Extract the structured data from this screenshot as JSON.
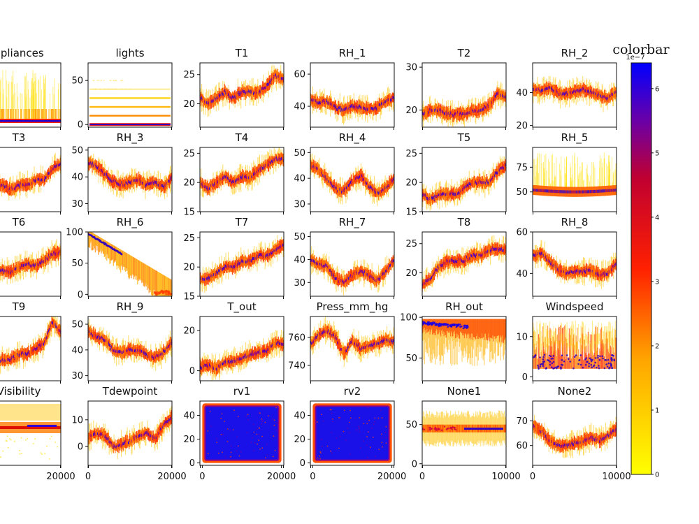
{
  "chart_data": {
    "type": "scatter",
    "description_colormap": [
      "#ffff00",
      "#ffa500",
      "#ff0000",
      "#8b00a0",
      "#0000ff"
    ],
    "colorbar": {
      "title": "colorbar",
      "exponent_label": "1e−7",
      "ticks": [
        "0",
        "1",
        "2",
        "3",
        "4",
        "5",
        "6"
      ],
      "range": [
        0,
        6.4
      ]
    },
    "panels": [
      {
        "title": "ppliances",
        "xticks": [],
        "yticks": [],
        "xlim": [
          0,
          20000
        ],
        "style": "appliances"
      },
      {
        "title": "lights",
        "xticks": [],
        "yticks": [
          {
            "v": 50,
            "t": "50"
          },
          {
            "v": 0,
            "t": "0"
          }
        ],
        "ylim": [
          -3,
          70
        ],
        "xlim": [
          0,
          20000
        ],
        "style": "lights"
      },
      {
        "title": "T1",
        "xticks": [],
        "yticks": [
          {
            "v": 25,
            "t": "25"
          },
          {
            "v": 20,
            "t": "20"
          }
        ],
        "ylim": [
          16,
          27
        ],
        "xlim": [
          0,
          20000
        ],
        "style": "series",
        "series": [
          21,
          20,
          21,
          22,
          21,
          22,
          22,
          22,
          23,
          25,
          24
        ]
      },
      {
        "title": "RH_1",
        "xticks": [],
        "yticks": [
          {
            "v": 60,
            "t": "60"
          },
          {
            "v": 40,
            "t": "40"
          }
        ],
        "ylim": [
          27,
          67
        ],
        "xlim": [
          0,
          20000
        ],
        "style": "series",
        "series": [
          44,
          42,
          43,
          39,
          38,
          40,
          39,
          38,
          39,
          43,
          45
        ]
      },
      {
        "title": "T2",
        "xticks": [],
        "yticks": [
          {
            "v": 30,
            "t": "30"
          },
          {
            "v": 20,
            "t": "20"
          }
        ],
        "ylim": [
          16,
          31
        ],
        "xlim": [
          0,
          20000
        ],
        "style": "series",
        "series": [
          19,
          20,
          20,
          19,
          19,
          19,
          20,
          20,
          21,
          24,
          23
        ]
      },
      {
        "title": "RH_2",
        "xticks": [],
        "yticks": [
          {
            "v": 40,
            "t": "40"
          },
          {
            "v": 20,
            "t": "20"
          }
        ],
        "ylim": [
          19,
          58
        ],
        "xlim": [
          0,
          20000
        ],
        "style": "series",
        "series": [
          42,
          41,
          43,
          40,
          39,
          41,
          42,
          40,
          38,
          37,
          40
        ]
      },
      {
        "title": "T3",
        "xticks": [],
        "yticks": [],
        "xlim": [
          0,
          20000
        ],
        "style": "series",
        "series": [
          21,
          20,
          21,
          22,
          21,
          22,
          22,
          23,
          23,
          25,
          26
        ],
        "ylim": [
          17,
          29
        ]
      },
      {
        "title": "RH_3",
        "xticks": [],
        "yticks": [
          {
            "v": 50,
            "t": "50"
          },
          {
            "v": 40,
            "t": "40"
          },
          {
            "v": 30,
            "t": "30"
          }
        ],
        "ylim": [
          27,
          51
        ],
        "xlim": [
          0,
          20000
        ],
        "style": "series",
        "series": [
          45,
          44,
          41,
          38,
          37,
          38,
          39,
          37,
          38,
          36,
          40
        ]
      },
      {
        "title": "T4",
        "xticks": [],
        "yticks": [
          {
            "v": 25,
            "t": "25"
          },
          {
            "v": 20,
            "t": "20"
          },
          {
            "v": 15,
            "t": "15"
          }
        ],
        "ylim": [
          15,
          26
        ],
        "xlim": [
          0,
          20000
        ],
        "style": "series",
        "series": [
          20,
          19,
          20,
          21,
          20,
          21,
          21,
          22,
          23,
          24,
          24
        ]
      },
      {
        "title": "RH_4",
        "xticks": [],
        "yticks": [
          {
            "v": 50,
            "t": "50"
          },
          {
            "v": 40,
            "t": "40"
          },
          {
            "v": 30,
            "t": "30"
          }
        ],
        "ylim": [
          27,
          52
        ],
        "xlim": [
          0,
          20000
        ],
        "style": "series",
        "series": [
          45,
          43,
          40,
          36,
          35,
          39,
          41,
          37,
          34,
          36,
          40
        ]
      },
      {
        "title": "T5",
        "xticks": [],
        "yticks": [
          {
            "v": 25,
            "t": "25"
          },
          {
            "v": 20,
            "t": "20"
          },
          {
            "v": 15,
            "t": "15"
          }
        ],
        "ylim": [
          15,
          26
        ],
        "xlim": [
          0,
          20000
        ],
        "style": "series",
        "series": [
          18,
          17,
          18,
          18,
          18,
          19,
          20,
          20,
          20,
          22,
          23
        ]
      },
      {
        "title": "RH_5",
        "xticks": [],
        "yticks": [
          {
            "v": 75,
            "t": "75"
          },
          {
            "v": 50,
            "t": "50"
          }
        ],
        "ylim": [
          30,
          95
        ],
        "xlim": [
          0,
          20000
        ],
        "style": "rh5"
      },
      {
        "title": "T6",
        "xticks": [],
        "yticks": [],
        "xlim": [
          0,
          20000
        ],
        "ylim": [
          -10,
          30
        ],
        "style": "series",
        "series": [
          0,
          2,
          4,
          6,
          5,
          8,
          10,
          9,
          12,
          16,
          18
        ]
      },
      {
        "title": "RH_6",
        "xticks": [],
        "yticks": [
          {
            "v": 100,
            "t": "100"
          },
          {
            "v": 50,
            "t": "50"
          },
          {
            "v": 0,
            "t": "0"
          }
        ],
        "ylim": [
          -3,
          100
        ],
        "xlim": [
          0,
          20000
        ],
        "style": "rh6"
      },
      {
        "title": "T7",
        "xticks": [],
        "yticks": [
          {
            "v": 25,
            "t": "25"
          },
          {
            "v": 20,
            "t": "20"
          },
          {
            "v": 15,
            "t": "15"
          }
        ],
        "ylim": [
          15,
          26
        ],
        "xlim": [
          0,
          20000
        ],
        "style": "series",
        "series": [
          18,
          18,
          19,
          20,
          20,
          21,
          21,
          22,
          22,
          23,
          24
        ]
      },
      {
        "title": "RH_7",
        "xticks": [],
        "yticks": [
          {
            "v": 50,
            "t": "50"
          },
          {
            "v": 40,
            "t": "40"
          },
          {
            "v": 30,
            "t": "30"
          }
        ],
        "ylim": [
          24,
          52
        ],
        "xlim": [
          0,
          20000
        ],
        "style": "series",
        "series": [
          40,
          38,
          37,
          32,
          30,
          33,
          35,
          33,
          31,
          35,
          40
        ]
      },
      {
        "title": "T8",
        "xticks": [],
        "yticks": [
          {
            "v": 25,
            "t": "25"
          },
          {
            "v": 20,
            "t": "20"
          }
        ],
        "ylim": [
          16,
          27
        ],
        "xlim": [
          0,
          20000
        ],
        "style": "series",
        "series": [
          18,
          19,
          21,
          22,
          22,
          22,
          23,
          23,
          24,
          24,
          24
        ]
      },
      {
        "title": "RH_8",
        "xticks": [],
        "yticks": [
          {
            "v": 60,
            "t": "60"
          },
          {
            "v": 40,
            "t": "40"
          }
        ],
        "ylim": [
          29,
          60
        ],
        "xlim": [
          0,
          20000
        ],
        "style": "series",
        "series": [
          48,
          50,
          46,
          42,
          40,
          41,
          41,
          42,
          39,
          40,
          45
        ]
      },
      {
        "title": "T9",
        "xticks": [],
        "yticks": [],
        "xlim": [
          0,
          20000
        ],
        "ylim": [
          14,
          26
        ],
        "style": "series",
        "series": [
          16,
          16,
          17,
          18,
          18,
          19,
          19,
          20,
          21,
          25,
          23
        ]
      },
      {
        "title": "RH_9",
        "xticks": [],
        "yticks": [
          {
            "v": 50,
            "t": "50"
          },
          {
            "v": 40,
            "t": "40"
          },
          {
            "v": 30,
            "t": "30"
          }
        ],
        "ylim": [
          28,
          53
        ],
        "xlim": [
          0,
          20000
        ],
        "style": "series",
        "series": [
          47,
          45,
          44,
          40,
          39,
          40,
          40,
          38,
          37,
          39,
          43
        ]
      },
      {
        "title": "T_out",
        "xticks": [],
        "yticks": [
          {
            "v": 20,
            "t": "20"
          },
          {
            "v": 0,
            "t": "0"
          }
        ],
        "ylim": [
          -5,
          27
        ],
        "xlim": [
          0,
          20000
        ],
        "style": "series",
        "series": [
          2,
          3,
          1,
          4,
          5,
          6,
          8,
          9,
          10,
          14,
          13
        ]
      },
      {
        "title": "Press_mm_hg",
        "xticks": [],
        "yticks": [
          {
            "v": 760,
            "t": "760"
          },
          {
            "v": 740,
            "t": "740"
          }
        ],
        "ylim": [
          729,
          775
        ],
        "xlim": [
          0,
          20000
        ],
        "style": "series",
        "series": [
          755,
          762,
          765,
          760,
          748,
          758,
          752,
          754,
          756,
          758,
          757
        ]
      },
      {
        "title": "RH_out",
        "xticks": [],
        "yticks": [
          {
            "v": 100,
            "t": "100"
          },
          {
            "v": 50,
            "t": "50"
          }
        ],
        "ylim": [
          22,
          101
        ],
        "xlim": [
          0,
          20000
        ],
        "style": "rhout"
      },
      {
        "title": "Windspeed",
        "xticks": [],
        "yticks": [
          {
            "v": 10,
            "t": "10"
          },
          {
            "v": 0,
            "t": "0"
          }
        ],
        "ylim": [
          -1,
          15
        ],
        "xlim": [
          0,
          20000
        ],
        "style": "windspeed"
      },
      {
        "title": "Visibility",
        "xticks": [
          {
            "v": 20000,
            "t": "20000"
          }
        ],
        "yticks": [],
        "xlim": [
          0,
          20000
        ],
        "style": "visibility"
      },
      {
        "title": "Tdewpoint",
        "xticks": [
          {
            "v": 0,
            "t": "0"
          },
          {
            "v": 20000,
            "t": "20000"
          }
        ],
        "yticks": [
          {
            "v": 10,
            "t": "10"
          },
          {
            "v": 0,
            "t": "0"
          }
        ],
        "ylim": [
          -7,
          17
        ],
        "xlim": [
          0,
          20000
        ],
        "style": "series",
        "series": [
          3,
          5,
          4,
          0,
          1,
          2,
          4,
          5,
          3,
          8,
          11
        ]
      },
      {
        "title": "rv1",
        "xticks": [
          {
            "v": 0,
            "t": "0"
          },
          {
            "v": 20000,
            "t": "20000"
          }
        ],
        "yticks": [
          {
            "v": 40,
            "t": "40"
          },
          {
            "v": 20,
            "t": "20"
          },
          {
            "v": 0,
            "t": "0"
          }
        ],
        "ylim": [
          -2,
          52
        ],
        "xlim": [
          -600,
          20600
        ],
        "style": "rv"
      },
      {
        "title": "rv2",
        "xticks": [
          {
            "v": 0,
            "t": "0"
          },
          {
            "v": 20000,
            "t": "20000"
          }
        ],
        "yticks": [
          {
            "v": 40,
            "t": "40"
          },
          {
            "v": 20,
            "t": "20"
          },
          {
            "v": 0,
            "t": "0"
          }
        ],
        "ylim": [
          -2,
          52
        ],
        "xlim": [
          -600,
          20600
        ],
        "style": "rv"
      },
      {
        "title": "None1",
        "xticks": [
          {
            "v": 0,
            "t": "0"
          },
          {
            "v": 10000,
            "t": "10000"
          }
        ],
        "yticks": [
          {
            "v": 50,
            "t": "50"
          },
          {
            "v": 0,
            "t": "0"
          }
        ],
        "ylim": [
          -2,
          80
        ],
        "xlim": [
          0,
          10000
        ],
        "style": "none1"
      },
      {
        "title": "None2",
        "xticks": [
          {
            "v": 0,
            "t": "0"
          },
          {
            "v": 10000,
            "t": "10000"
          }
        ],
        "yticks": [
          {
            "v": 70,
            "t": "70"
          },
          {
            "v": 60,
            "t": "60"
          }
        ],
        "ylim": [
          52,
          78
        ],
        "xlim": [
          0,
          10000
        ],
        "style": "series",
        "series": [
          68,
          66,
          62,
          60,
          60,
          61,
          62,
          63,
          62,
          64,
          67
        ]
      }
    ]
  }
}
